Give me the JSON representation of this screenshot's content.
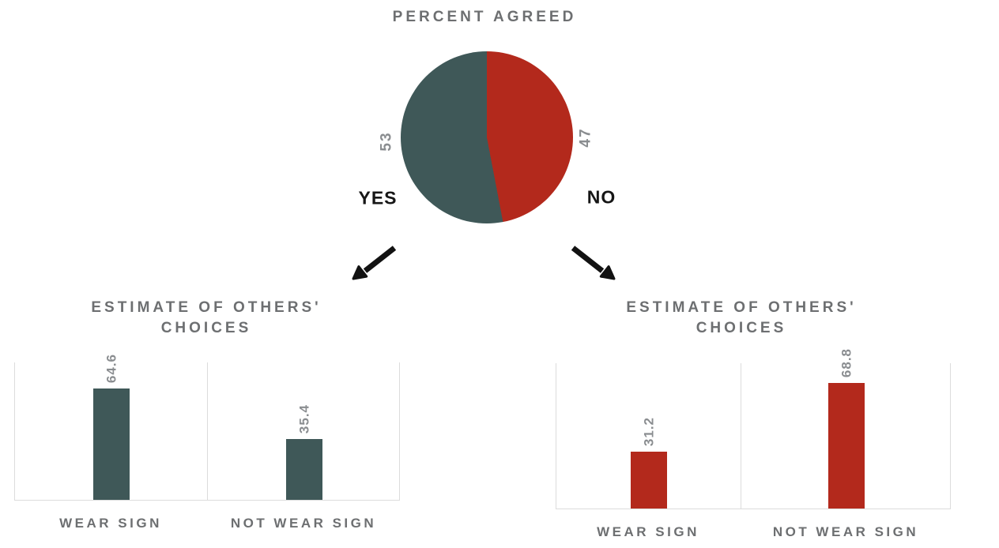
{
  "chart_data": [
    {
      "type": "pie",
      "title": "PERCENT AGREED",
      "slices": [
        {
          "label": "YES",
          "value": 53,
          "color": "#3f5858",
          "side": "left"
        },
        {
          "label": "NO",
          "value": 47,
          "color": "#b3291c",
          "side": "right"
        }
      ],
      "layout": {
        "start_angle": "12 o'clock",
        "no_slice_clockwise_right": true,
        "value_labels_rotated_deg": -90,
        "legend": "none"
      }
    },
    {
      "type": "bar",
      "branch": "YES",
      "title": "ESTIMATE OF OTHERS' CHOICES",
      "title_lines": [
        "ESTIMATE OF OTHERS'",
        "CHOICES"
      ],
      "categories": [
        "WEAR SIGN",
        "NOT WEAR SIGN"
      ],
      "values": [
        64.6,
        35.4
      ],
      "bar_color": "#3f5858",
      "ylim": [
        0,
        80
      ],
      "grid": false,
      "value_labels_rotated_deg": -90
    },
    {
      "type": "bar",
      "branch": "NO",
      "title": "ESTIMATE OF OTHERS' CHOICES",
      "title_lines": [
        "ESTIMATE OF OTHERS'",
        "CHOICES"
      ],
      "categories": [
        "WEAR SIGN",
        "NOT WEAR SIGN"
      ],
      "values": [
        31.2,
        68.8
      ],
      "bar_color": "#b3291c",
      "ylim": [
        0,
        80
      ],
      "grid": false,
      "value_labels_rotated_deg": -90
    }
  ],
  "arrows": [
    {
      "direction": "down-left",
      "points_to": "YES estimate chart"
    },
    {
      "direction": "down-right",
      "points_to": "NO estimate chart"
    }
  ],
  "colors": {
    "teal": "#3f5858",
    "red": "#b3291c",
    "title_gray": "#6d6f71",
    "value_gray": "#8a8d90",
    "spine_gray": "#dcdcdc",
    "arrow_black": "#121212",
    "background": "#ffffff"
  }
}
